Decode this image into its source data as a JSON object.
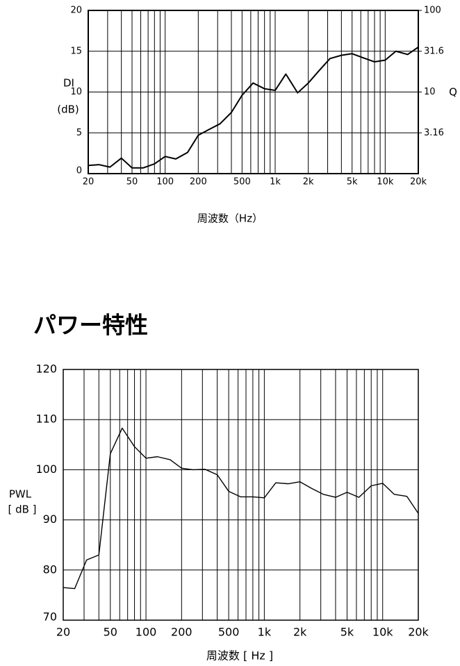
{
  "chart_data": [
    {
      "type": "line",
      "x": [
        20,
        25,
        31.5,
        40,
        50,
        63,
        80,
        100,
        125,
        160,
        200,
        250,
        315,
        400,
        500,
        630,
        800,
        1000,
        1250,
        1600,
        2000,
        2500,
        3150,
        4000,
        5000,
        6300,
        8000,
        10000,
        12500,
        16000,
        20000
      ],
      "series": [
        {
          "color": "#000000",
          "values": [
            1.0,
            1.1,
            0.8,
            1.9,
            0.7,
            0.7,
            1.2,
            2.1,
            1.8,
            2.6,
            4.7,
            5.4,
            6.1,
            7.5,
            9.6,
            11.1,
            10.4,
            10.2,
            12.2,
            9.9,
            11.1,
            12.6,
            14.1,
            14.5,
            14.7,
            14.2,
            13.7,
            13.9,
            15.0,
            14.6,
            15.5
          ]
        }
      ],
      "xlim": [
        20,
        20000
      ],
      "xscale": "log",
      "xticks": [
        20,
        50,
        100,
        200,
        500,
        {
          "value": 1000,
          "label": "1k"
        },
        {
          "value": 2000,
          "label": "2k"
        },
        {
          "value": 5000,
          "label": "5k"
        },
        {
          "value": 10000,
          "label": "10k"
        },
        {
          "value": 20000,
          "label": "20k"
        }
      ],
      "xticks_minor": [
        30,
        40,
        60,
        70,
        80,
        90,
        300,
        400,
        600,
        700,
        800,
        900,
        3000,
        4000,
        6000,
        7000,
        8000,
        9000
      ],
      "ylim": [
        0,
        20
      ],
      "yticks": [
        0,
        5,
        10,
        15,
        20
      ],
      "y2lim": [
        1,
        100
      ],
      "y2scale": "log",
      "y2ticks": [
        100,
        31.6,
        10,
        3.16
      ],
      "ylabel": [
        "DI",
        "(dB)"
      ],
      "y2label": "Q",
      "xlabel": "周波数（Hz）",
      "grid": true
    },
    {
      "type": "line",
      "title": "パワー特性",
      "x": [
        20,
        25,
        31.5,
        40,
        50,
        63,
        80,
        100,
        125,
        160,
        200,
        250,
        315,
        400,
        500,
        630,
        800,
        1000,
        1250,
        1600,
        2000,
        2500,
        3150,
        4000,
        5000,
        6300,
        8000,
        10000,
        12500,
        16000,
        20000
      ],
      "series": [
        {
          "color": "#000000",
          "values": [
            76.5,
            76.3,
            82.0,
            83.0,
            103.2,
            108.3,
            104.6,
            102.3,
            102.6,
            102.0,
            100.3,
            100.0,
            100.1,
            99.0,
            95.7,
            94.6,
            94.6,
            94.4,
            97.4,
            97.2,
            97.6,
            96.3,
            95.1,
            94.5,
            95.5,
            94.5,
            96.8,
            97.3,
            95.1,
            94.7,
            91.3
          ]
        }
      ],
      "xlim": [
        20,
        20000
      ],
      "xscale": "log",
      "xticks": [
        20,
        50,
        100,
        200,
        500,
        {
          "value": 1000,
          "label": "1k"
        },
        {
          "value": 2000,
          "label": "2k"
        },
        {
          "value": 5000,
          "label": "5k"
        },
        {
          "value": 10000,
          "label": "10k"
        },
        {
          "value": 20000,
          "label": "20k"
        }
      ],
      "xticks_minor": [
        30,
        40,
        60,
        70,
        80,
        90,
        300,
        400,
        600,
        700,
        800,
        900,
        3000,
        4000,
        6000,
        7000,
        8000,
        9000
      ],
      "ylim": [
        70,
        120
      ],
      "yticks": [
        70,
        80,
        90,
        100,
        110,
        120
      ],
      "ylabel": [
        "PWL",
        "[ dB ]"
      ],
      "xlabel": "周波数 [ Hz ]",
      "grid": true
    }
  ]
}
